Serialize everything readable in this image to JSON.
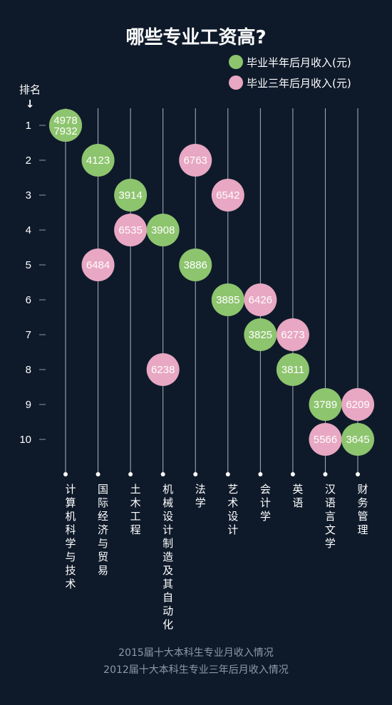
{
  "chart_data": {
    "type": "scatter",
    "title": "哪些专业工资高?",
    "rank_axis_label": "排名",
    "rank_arrow": "↓",
    "ranks": [
      "1",
      "2",
      "3",
      "4",
      "5",
      "6",
      "7",
      "8",
      "9",
      "10"
    ],
    "categories": [
      "计算机科学与技术",
      "国际经济与贸易",
      "土木工程",
      "机械设计制造及其自动化",
      "法学",
      "艺术设计",
      "会计学",
      "英语",
      "汉语言文学",
      "财务管理"
    ],
    "series": [
      {
        "name": "毕业半年后月收入(元)",
        "color": "#8dc46e",
        "ranks": [
          1,
          2,
          3,
          4,
          5,
          6,
          7,
          8,
          9,
          10
        ],
        "values": [
          4978,
          4123,
          3914,
          3908,
          3886,
          3885,
          3825,
          3811,
          3789,
          3645
        ]
      },
      {
        "name": "毕业三年后月收入(元)",
        "color": "#e8a7c2",
        "ranks": [
          1,
          5,
          4,
          8,
          2,
          3,
          6,
          7,
          10,
          9
        ],
        "values": [
          7932,
          6484,
          6535,
          6238,
          6763,
          6542,
          6426,
          6273,
          5566,
          6209
        ]
      }
    ],
    "footnotes": [
      "2015届十大本科生专业月收入情况",
      "2012届十大本科生专业三年后月收入情况"
    ],
    "legend_position": "top-right"
  }
}
